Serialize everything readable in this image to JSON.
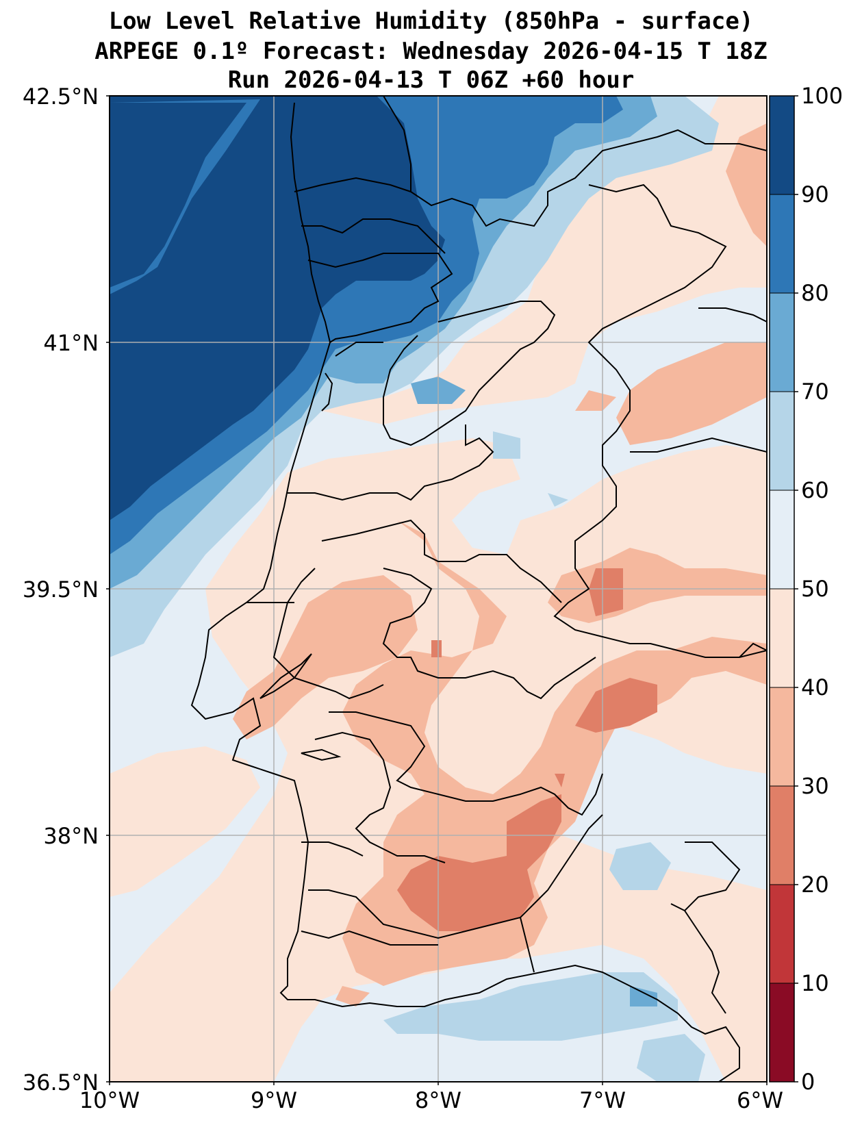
{
  "title": {
    "line1": "Low Level Relative Humidity (850hPa - surface)",
    "line2": "ARPEGE 0.1º Forecast: Wednesday 2026-04-15 T 18Z",
    "line3": "Run 2026-04-13 T 06Z +60 hour"
  },
  "axes": {
    "lat_labels": [
      "42.5°N",
      "41°N",
      "39.5°N",
      "38°N",
      "36.5°N"
    ],
    "lon_labels": [
      "10°W",
      "9°W",
      "8°W",
      "7°W",
      "6°W"
    ]
  },
  "colorbar": {
    "ticks": [
      "100",
      "90",
      "80",
      "70",
      "60",
      "50",
      "40",
      "30",
      "20",
      "10",
      "0"
    ],
    "colors": [
      "#8a0b25",
      "#c13639",
      "#e07f67",
      "#f5b89e",
      "#fbe4d7",
      "#e5eef6",
      "#b5d5e8",
      "#6aaad3",
      "#2e77b6",
      "#134a84"
    ]
  },
  "map": {
    "extent": {
      "lon": [
        -10,
        -6
      ],
      "lat": [
        36.5,
        42.5
      ]
    },
    "levels": [
      0,
      10,
      20,
      30,
      40,
      50,
      60,
      70,
      80,
      90,
      100
    ]
  }
}
